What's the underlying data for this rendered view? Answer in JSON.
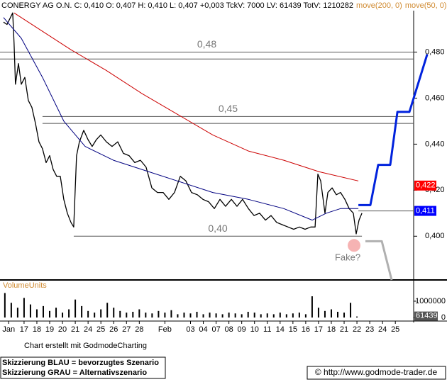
{
  "chart_data": {
    "type": "line",
    "title": "CONERGY AG O.N. C: 0,410 O: 0,407 H: 0,410 L: 0,407 +0,003 TckV: 7000 LV: 61439 TotV: 1210282",
    "series": [
      {
        "color": "#000000",
        "x": [
          -1.61,
          -1.33,
          -0.89,
          -0.78,
          -0.67,
          -0.44,
          -0.22,
          0.06,
          0.33,
          0.61,
          0.89,
          1.16,
          1.44,
          1.72,
          2.0,
          2.27,
          2.55,
          2.83,
          3.1,
          3.38,
          3.66,
          3.88,
          4.1,
          4.32,
          4.66,
          4.99,
          5.32,
          5.65,
          5.99,
          6.43,
          6.87,
          7.32,
          7.76,
          8.2,
          8.65,
          9.09,
          9.53,
          9.98,
          10.42,
          10.86,
          11.31,
          11.75,
          12.2,
          12.64,
          13.08,
          13.53,
          13.97,
          14.41,
          14.86,
          15.3,
          15.74,
          16.19,
          16.63,
          17.07,
          17.52,
          17.96,
          18.4,
          18.85,
          19.29,
          19.73,
          20.18,
          20.62,
          21.06,
          21.51,
          21.95,
          22.39,
          22.73,
          22.95,
          23.17,
          23.5,
          23.73,
          24.06,
          24.39,
          24.72,
          25.06,
          25.39,
          25.72,
          25.94,
          26.16,
          26.39
        ],
        "values": [
          0.493,
          0.492,
          0.497,
          0.484,
          0.466,
          0.475,
          0.466,
          0.469,
          0.459,
          0.456,
          0.449,
          0.441,
          0.438,
          0.432,
          0.435,
          0.429,
          0.426,
          0.426,
          0.416,
          0.41,
          0.406,
          0.404,
          0.435,
          0.441,
          0.446,
          0.442,
          0.439,
          0.442,
          0.444,
          0.441,
          0.439,
          0.441,
          0.436,
          0.435,
          0.432,
          0.433,
          0.43,
          0.421,
          0.419,
          0.419,
          0.416,
          0.419,
          0.426,
          0.424,
          0.419,
          0.418,
          0.416,
          0.415,
          0.412,
          0.416,
          0.413,
          0.416,
          0.413,
          0.416,
          0.412,
          0.409,
          0.41,
          0.407,
          0.409,
          0.406,
          0.405,
          0.404,
          0.403,
          0.404,
          0.403,
          0.404,
          0.404,
          0.427,
          0.424,
          0.41,
          0.419,
          0.421,
          0.418,
          0.419,
          0.416,
          0.412,
          0.41,
          0.401,
          0.407,
          0.41
        ]
      },
      {
        "name": "move(200, 0)",
        "color": "#cc0000",
        "x": [
          -0.78,
          3.66,
          6.43,
          9.2,
          11.97,
          14.74,
          17.52,
          20.29,
          23.06,
          26.11
        ],
        "values": [
          0.497,
          0.481,
          0.472,
          0.462,
          0.453,
          0.444,
          0.437,
          0.433,
          0.428,
          0.424
        ]
      },
      {
        "name": "move(50, 0)",
        "color": "#000080",
        "x": [
          -1.61,
          -0.22,
          1.44,
          3.1,
          4.77,
          6.98,
          9.2,
          11.97,
          14.74,
          17.52,
          20.29,
          22.51,
          23.61,
          24.72,
          26.11
        ],
        "values": [
          0.495,
          0.486,
          0.469,
          0.45,
          0.439,
          0.433,
          0.429,
          0.424,
          0.419,
          0.416,
          0.412,
          0.407,
          0.41,
          0.412,
          0.412
        ]
      }
    ],
    "xlim": [
      -1.88,
      30.43
    ],
    "xticks": [
      {
        "value": -1.2,
        "label": "Jan"
      },
      {
        "value": 0,
        "label": "17"
      },
      {
        "value": 1,
        "label": "18"
      },
      {
        "value": 2,
        "label": "19"
      },
      {
        "value": 3,
        "label": "20"
      },
      {
        "value": 4,
        "label": "21"
      },
      {
        "value": 5,
        "label": "24"
      },
      {
        "value": 6,
        "label": "25"
      },
      {
        "value": 7,
        "label": "26"
      },
      {
        "value": 8,
        "label": "27"
      },
      {
        "value": 9,
        "label": "28"
      },
      {
        "value": 11,
        "label": "Feb"
      },
      {
        "value": 13,
        "label": "03"
      },
      {
        "value": 14,
        "label": "04"
      },
      {
        "value": 15,
        "label": "07"
      },
      {
        "value": 16,
        "label": "08"
      },
      {
        "value": 17,
        "label": "09"
      },
      {
        "value": 18,
        "label": "10"
      },
      {
        "value": 19,
        "label": "11"
      },
      {
        "value": 20,
        "label": "14"
      },
      {
        "value": 21,
        "label": "15"
      },
      {
        "value": 22,
        "label": "16"
      },
      {
        "value": 23,
        "label": "17"
      },
      {
        "value": 24,
        "label": "18"
      },
      {
        "value": 25,
        "label": "21"
      },
      {
        "value": 26,
        "label": "22"
      },
      {
        "value": 27,
        "label": "23"
      },
      {
        "value": 28,
        "label": "24"
      },
      {
        "value": 29,
        "label": "25"
      }
    ],
    "ylim": [
      0.381,
      0.498
    ],
    "yticks": [
      {
        "value": 0.4,
        "label": "0,400"
      },
      {
        "value": 0.42,
        "label": "0,420"
      },
      {
        "value": 0.44,
        "label": "0,440"
      },
      {
        "value": 0.46,
        "label": "0,460"
      },
      {
        "value": 0.48,
        "label": "0,480"
      }
    ],
    "levels": [
      {
        "value": 0.48,
        "label": "0,48",
        "x": [
          -1.88,
          30.43
        ]
      },
      {
        "value": 0.477,
        "x": [
          -1.88,
          30.43
        ]
      },
      {
        "value": 0.452,
        "label": "0,45",
        "x": [
          1.44,
          30.43
        ]
      },
      {
        "value": 0.449,
        "x": [
          1.44,
          30.43
        ]
      },
      {
        "value": 0.4,
        "label": "0,40",
        "x": [
          3.88,
          26.39
        ]
      },
      {
        "value": 0.411,
        "x": [
          26.11,
          30.43
        ]
      }
    ],
    "price_markers": [
      {
        "value": 0.422,
        "label": "0,422",
        "color": "#ff0000"
      },
      {
        "value": 0.411,
        "label": "0,411",
        "color": "#0000ff"
      }
    ],
    "scenarios": [
      {
        "name": "Skizzierung BLAU = bevorzugtes Szenario",
        "color": "#0022dd",
        "x": [
          26.11,
          27.05,
          27.66,
          28.6,
          29.16,
          30.1,
          31.49
        ],
        "values": [
          0.4135,
          0.4135,
          0.431,
          0.431,
          0.454,
          0.454,
          0.479
        ]
      },
      {
        "name": "Skizzierung GRAU = Alternativszenario",
        "color": "#b0b0b0",
        "x": [
          26.66,
          27.94,
          28.71
        ],
        "values": [
          0.3978,
          0.3978,
          0.381
        ]
      }
    ],
    "annotation": {
      "text": "Fake?",
      "x": 25.72,
      "value": 0.396
    },
    "volume": {
      "label": "VolumeUnits",
      "ylim": [
        0,
        2170000
      ],
      "yticks": [
        0,
        1000000
      ],
      "color": "#000000",
      "x": [
        -1.5,
        -1,
        -0.5,
        0,
        0.5,
        1,
        1.5,
        2,
        2.5,
        3,
        3.5,
        4,
        4.5,
        5,
        5.5,
        6,
        6.5,
        7,
        7.5,
        8,
        8.5,
        9,
        9.5,
        10,
        10.5,
        11,
        11.5,
        12,
        12.5,
        13,
        13.5,
        14,
        14.5,
        15,
        15.5,
        16,
        16.5,
        17,
        17.5,
        18,
        18.5,
        19,
        19.5,
        20,
        20.5,
        21,
        21.5,
        22,
        22.5,
        23,
        23.5,
        24,
        24.5,
        25,
        25.5,
        26
      ],
      "values": [
        1500000,
        900000,
        600000,
        1200000,
        800000,
        500000,
        700000,
        400000,
        600000,
        300000,
        500000,
        1100000,
        700000,
        400000,
        300000,
        500000,
        900000,
        600000,
        400000,
        300000,
        350000,
        500000,
        300000,
        250000,
        400000,
        300000,
        450000,
        200000,
        300000,
        250000,
        350000,
        200000,
        300000,
        250000,
        200000,
        300000,
        250000,
        200000,
        350000,
        300000,
        200000,
        250000,
        200000,
        300000,
        200000,
        250000,
        300000,
        200000,
        1300000,
        600000,
        400000,
        500000,
        350000,
        300000,
        900000,
        61439
      ],
      "last": 61439
    },
    "footer": "Chart erstellt mit GodmodeCharting",
    "copyright": "© http://www.godmode-trader.de"
  }
}
